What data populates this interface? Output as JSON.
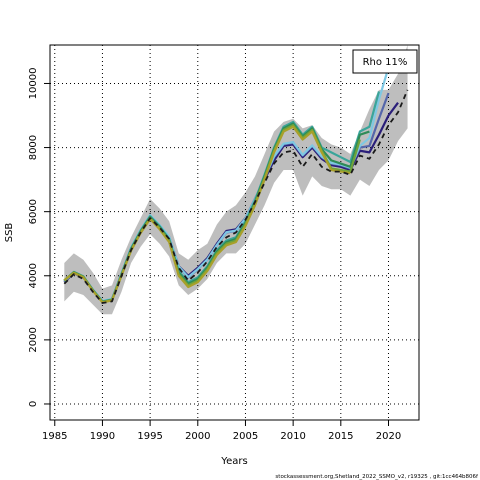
{
  "chart_data": {
    "type": "line",
    "xlabel": "Years",
    "ylabel": "SSB",
    "xlim": [
      1984.5,
      2023.2
    ],
    "ylim": [
      -500,
      11200
    ],
    "x_ticks": [
      1985,
      1990,
      1995,
      2000,
      2005,
      2010,
      2015,
      2020
    ],
    "y_ticks": [
      0,
      2000,
      4000,
      6000,
      8000,
      10000
    ],
    "grid": "dotted",
    "legend": {
      "position": "top-right",
      "text": "Rho 11%"
    },
    "footnote": "stockassessment.org,Shetland_2022_SSMO_v2, r19325 , git:1cc464b806f",
    "confidence_band": {
      "x": [
        1986,
        1987,
        1988,
        1989,
        1990,
        1991,
        1992,
        1993,
        1994,
        1995,
        1996,
        1997,
        1998,
        1999,
        2000,
        2001,
        2002,
        2003,
        2004,
        2005,
        2006,
        2007,
        2008,
        2009,
        2010,
        2011,
        2012,
        2013,
        2014,
        2015,
        2016,
        2017,
        2018,
        2019,
        2020,
        2021,
        2022
      ],
      "upper": [
        4400,
        4700,
        4500,
        4100,
        3600,
        3700,
        4500,
        5200,
        5800,
        6400,
        6100,
        5700,
        4700,
        4500,
        4800,
        5000,
        5600,
        6000,
        6200,
        6600,
        7100,
        7800,
        8500,
        8800,
        8900,
        8600,
        8700,
        8300,
        8100,
        8000,
        7800,
        8500,
        9200,
        9800,
        9800,
        10300,
        11200
      ],
      "lower": [
        3200,
        3500,
        3400,
        3100,
        2800,
        2800,
        3500,
        4400,
        4900,
        5300,
        5000,
        4600,
        3700,
        3400,
        3600,
        3900,
        4400,
        4700,
        4700,
        5000,
        5600,
        6200,
        6900,
        7300,
        7300,
        6500,
        7100,
        6800,
        6700,
        6700,
        6500,
        7000,
        6800,
        7300,
        7600,
        8200,
        8600
      ]
    },
    "series": [
      {
        "color": "#1a1a1a",
        "dash": true,
        "x": [
          1986,
          1987,
          1988,
          1989,
          1990,
          1991,
          1992,
          1993,
          1994,
          1995,
          1996,
          1997,
          1998,
          1999,
          2000,
          2001,
          2002,
          2003,
          2004,
          2005,
          2006,
          2007,
          2008,
          2009,
          2010,
          2011,
          2012,
          2013,
          2014,
          2015,
          2016,
          2017,
          2018,
          2019,
          2020,
          2021,
          2022
        ],
        "values": [
          3750,
          4050,
          3900,
          3500,
          3150,
          3200,
          4000,
          4800,
          5350,
          5800,
          5500,
          5150,
          4250,
          3850,
          4100,
          4450,
          4900,
          5200,
          5350,
          5750,
          6300,
          6900,
          7500,
          7850,
          7900,
          7400,
          7800,
          7400,
          7250,
          7250,
          7150,
          7750,
          7650,
          8100,
          8700,
          9100,
          9800
        ]
      },
      {
        "color": "#2b1f7a",
        "x": [
          1986,
          1987,
          1988,
          1989,
          1990,
          1991,
          1992,
          1993,
          1994,
          1995,
          1996,
          1997,
          1998,
          1999,
          2000,
          2001,
          2002,
          2003,
          2004,
          2005,
          2006,
          2007,
          2008,
          2009,
          2010,
          2011,
          2012,
          2013,
          2014,
          2015,
          2016,
          2017,
          2018,
          2019,
          2020,
          2021
        ],
        "values": [
          3800,
          4080,
          3950,
          3550,
          3200,
          3250,
          4050,
          4850,
          5400,
          5850,
          5550,
          5200,
          4300,
          4000,
          4250,
          4550,
          5000,
          5400,
          5450,
          5800,
          6400,
          7000,
          7600,
          8050,
          8100,
          7700,
          8000,
          7650,
          7450,
          7400,
          7300,
          7900,
          7850,
          8400,
          9000,
          9400
        ]
      },
      {
        "color": "#5566aa",
        "x": [
          1986,
          1987,
          1988,
          1989,
          1990,
          1991,
          1992,
          1993,
          1994,
          1995,
          1996,
          1997,
          1998,
          1999,
          2000,
          2001,
          2002,
          2003,
          2004,
          2005,
          2006,
          2007,
          2008,
          2009,
          2010,
          2011,
          2012,
          2013,
          2014,
          2015,
          2016,
          2017,
          2018,
          2019,
          2020
        ],
        "values": [
          3820,
          4090,
          3960,
          3560,
          3210,
          3270,
          4070,
          4870,
          5420,
          5880,
          5570,
          5210,
          4280,
          3950,
          4200,
          4500,
          4950,
          5350,
          5400,
          5780,
          6380,
          7050,
          7700,
          8100,
          8150,
          7750,
          8050,
          7700,
          7500,
          7450,
          7350,
          8000,
          8050,
          8900,
          9700
        ]
      },
      {
        "color": "#7ec8e3",
        "x": [
          1986,
          1987,
          1988,
          1989,
          1990,
          1991,
          1992,
          1993,
          1994,
          1995,
          1996,
          1997,
          1998,
          1999,
          2000,
          2001,
          2002,
          2003,
          2004,
          2005,
          2006,
          2007,
          2008,
          2009,
          2010,
          2011,
          2012,
          2013,
          2014,
          2015,
          2016,
          2017,
          2018,
          2019,
          2020
        ],
        "values": [
          3830,
          4100,
          3970,
          3570,
          3220,
          3280,
          4080,
          4880,
          5430,
          5890,
          5580,
          5220,
          4290,
          3960,
          4210,
          4510,
          4960,
          5360,
          5410,
          5790,
          6390,
          7060,
          7720,
          8120,
          8170,
          7770,
          8070,
          7720,
          7520,
          7470,
          7370,
          8050,
          8300,
          9500,
          10500
        ]
      },
      {
        "color": "#3aa59a",
        "x": [
          1986,
          1987,
          1988,
          1989,
          1990,
          1991,
          1992,
          1993,
          1994,
          1995,
          1996,
          1997,
          1998,
          1999,
          2000,
          2001,
          2002,
          2003,
          2004,
          2005,
          2006,
          2007,
          2008,
          2009,
          2010,
          2011,
          2012,
          2013,
          2014,
          2015,
          2016,
          2017,
          2018,
          2019
        ],
        "values": [
          3850,
          4120,
          3980,
          3560,
          3200,
          3260,
          4050,
          4850,
          5400,
          5860,
          5550,
          5150,
          4150,
          3800,
          3950,
          4300,
          4800,
          5100,
          5200,
          5700,
          6350,
          7150,
          8000,
          8650,
          8800,
          8400,
          8650,
          8000,
          7850,
          7700,
          7550,
          8500,
          8650,
          9750
        ]
      },
      {
        "color": "#2e8b57",
        "x": [
          1986,
          1987,
          1988,
          1989,
          1990,
          1991,
          1992,
          1993,
          1994,
          1995,
          1996,
          1997,
          1998,
          1999,
          2000,
          2001,
          2002,
          2003,
          2004,
          2005,
          2006,
          2007,
          2008,
          2009,
          2010,
          2011,
          2012,
          2013,
          2014,
          2015,
          2016,
          2017,
          2018
        ],
        "values": [
          3850,
          4110,
          3970,
          3550,
          3190,
          3250,
          4040,
          4830,
          5380,
          5830,
          5520,
          5120,
          4100,
          3750,
          3900,
          4250,
          4750,
          5050,
          5150,
          5650,
          6300,
          7100,
          7950,
          8600,
          8750,
          8350,
          8600,
          7950,
          7600,
          7500,
          7400,
          8400,
          8500
        ]
      },
      {
        "color": "#6fa33a",
        "x": [
          1986,
          1987,
          1988,
          1989,
          1990,
          1991,
          1992,
          1993,
          1994,
          1995,
          1996,
          1997,
          1998,
          1999,
          2000,
          2001,
          2002,
          2003,
          2004,
          2005,
          2006,
          2007,
          2008,
          2009,
          2010,
          2011,
          2012,
          2013,
          2014,
          2015,
          2016,
          2017
        ],
        "values": [
          3860,
          4100,
          3960,
          3540,
          3180,
          3240,
          4020,
          4800,
          5350,
          5800,
          5480,
          5080,
          4050,
          3700,
          3850,
          4200,
          4700,
          5000,
          5100,
          5600,
          6250,
          7050,
          7900,
          8550,
          8700,
          8300,
          8550,
          7900,
          7350,
          7300,
          7250,
          8250
        ]
      },
      {
        "color": "#a8a02a",
        "x": [
          1986,
          1987,
          1988,
          1989,
          1990,
          1991,
          1992,
          1993,
          1994,
          1995,
          1996,
          1997,
          1998,
          1999,
          2000,
          2001,
          2002,
          2003,
          2004,
          2005,
          2006,
          2007,
          2008,
          2009,
          2010,
          2011,
          2012,
          2013,
          2014,
          2015,
          2016
        ],
        "values": [
          3860,
          4090,
          3950,
          3530,
          3170,
          3230,
          4000,
          4780,
          5330,
          5770,
          5450,
          5050,
          4000,
          3650,
          3800,
          4150,
          4650,
          4950,
          5050,
          5550,
          6200,
          7000,
          7850,
          8500,
          8650,
          8250,
          8500,
          7850,
          7300,
          7250,
          7200
        ]
      }
    ]
  }
}
